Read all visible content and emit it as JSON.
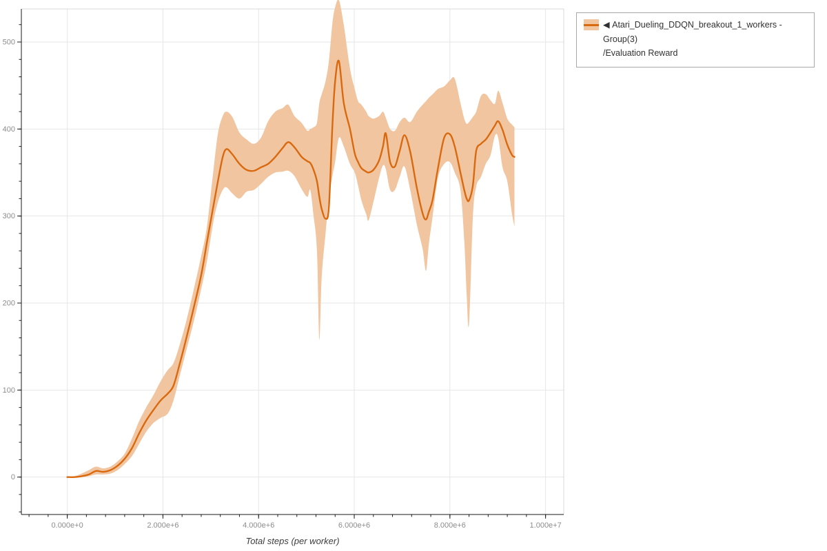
{
  "chart_data": {
    "type": "line",
    "title": "",
    "xlabel": "Total steps (per worker)",
    "ylabel": "",
    "grid": true,
    "legend_position": "top-right-outside",
    "xlim": [
      -960000,
      10380000
    ],
    "ylim": [
      -43,
      538
    ],
    "x_unit": "steps (values below given in millions of steps)",
    "x_ticks": [
      {
        "value": 0,
        "label": "0.000e+0"
      },
      {
        "value": 2000000,
        "label": "2.000e+6"
      },
      {
        "value": 4000000,
        "label": "4.000e+6"
      },
      {
        "value": 6000000,
        "label": "6.000e+6"
      },
      {
        "value": 8000000,
        "label": "8.000e+6"
      },
      {
        "value": 10000000,
        "label": "1.000e+7"
      }
    ],
    "x_minor_step": 400000,
    "y_ticks": [
      {
        "value": 0,
        "label": "0"
      },
      {
        "value": 100,
        "label": "100"
      },
      {
        "value": 200,
        "label": "200"
      },
      {
        "value": 300,
        "label": "300"
      },
      {
        "value": 400,
        "label": "400"
      },
      {
        "value": 500,
        "label": "500"
      }
    ],
    "y_minor_step": 20,
    "series": [
      {
        "name": "Atari_Dueling_DDQN_breakout_1_workers - Group(3)/Evaluation Reward",
        "color": "#d9690f",
        "band_color": "#f1c5a0",
        "x_millions": [
          0.0,
          0.15,
          0.3,
          0.45,
          0.6,
          0.75,
          0.9,
          1.05,
          1.2,
          1.35,
          1.5,
          1.65,
          1.8,
          1.95,
          2.1,
          2.22,
          2.35,
          2.5,
          2.65,
          2.8,
          2.92,
          3.05,
          3.15,
          3.25,
          3.33,
          3.45,
          3.6,
          3.75,
          3.9,
          4.05,
          4.2,
          4.35,
          4.5,
          4.62,
          4.75,
          4.9,
          5.02,
          5.08,
          5.15,
          5.22,
          5.27,
          5.32,
          5.4,
          5.47,
          5.54,
          5.6,
          5.68,
          5.78,
          5.91,
          6.01,
          6.08,
          6.15,
          6.25,
          6.3,
          6.4,
          6.52,
          6.6,
          6.66,
          6.75,
          6.85,
          6.95,
          7.05,
          7.17,
          7.31,
          7.43,
          7.5,
          7.56,
          7.64,
          7.75,
          7.88,
          8.0,
          8.1,
          8.22,
          8.3,
          8.35,
          8.4,
          8.48,
          8.55,
          8.65,
          8.75,
          8.85,
          8.94,
          9.01,
          9.1,
          9.2,
          9.3,
          9.35
        ],
        "mean": [
          0,
          0,
          1,
          3,
          7,
          6,
          8,
          13,
          21,
          33,
          50,
          65,
          77,
          88,
          96,
          105,
          130,
          162,
          196,
          232,
          270,
          310,
          340,
          368,
          377,
          371,
          360,
          353,
          352,
          356,
          360,
          368,
          378,
          385,
          379,
          368,
          363,
          361,
          353,
          340,
          322,
          308,
          297,
          310,
          400,
          455,
          478,
          430,
          400,
          372,
          362,
          355,
          351,
          350,
          353,
          364,
          380,
          395,
          362,
          357,
          375,
          393,
          374,
          332,
          303,
          296,
          305,
          319,
          355,
          390,
          394,
          380,
          350,
          330,
          320,
          318,
          335,
          375,
          383,
          388,
          396,
          404,
          409,
          399,
          382,
          370,
          368
        ],
        "upper": [
          0,
          1,
          4,
          8,
          12,
          10,
          12,
          18,
          27,
          44,
          64,
          80,
          94,
          110,
          123,
          131,
          152,
          182,
          217,
          254,
          288,
          350,
          395,
          415,
          420,
          414,
          396,
          388,
          383,
          390,
          409,
          420,
          424,
          428,
          415,
          407,
          398,
          400,
          402,
          407,
          430,
          440,
          455,
          478,
          520,
          540,
          548,
          520,
          470,
          446,
          432,
          428,
          420,
          415,
          412,
          415,
          420,
          413,
          400,
          398,
          408,
          413,
          408,
          420,
          428,
          432,
          436,
          440,
          446,
          449,
          456,
          458,
          430,
          412,
          406,
          408,
          414,
          420,
          438,
          440,
          433,
          429,
          444,
          430,
          412,
          405,
          402
        ],
        "lower": [
          0,
          0,
          0,
          1,
          3,
          3,
          4,
          8,
          15,
          24,
          38,
          52,
          62,
          68,
          73,
          88,
          116,
          148,
          180,
          216,
          248,
          292,
          316,
          330,
          333,
          326,
          320,
          328,
          330,
          337,
          345,
          350,
          351,
          352,
          346,
          331,
          322,
          330,
          300,
          260,
          158,
          230,
          280,
          320,
          345,
          362,
          390,
          380,
          360,
          350,
          335,
          318,
          302,
          295,
          316,
          344,
          358,
          354,
          330,
          330,
          345,
          357,
          330,
          290,
          262,
          237,
          268,
          300,
          344,
          360,
          362,
          350,
          330,
          272,
          210,
          176,
          298,
          334,
          345,
          360,
          370,
          392,
          390,
          356,
          340,
          302,
          288
        ]
      }
    ],
    "legend": {
      "marker": "◀",
      "line1": "Atari_Dueling_DDQN_breakout_1_workers - Group(3)",
      "line2": "/Evaluation Reward"
    }
  },
  "style_colors": {
    "line": "#d9690f",
    "band": "#f1c5a0",
    "grid": "#e6e6e6",
    "frame_border": "#d8d8d8",
    "axis": "#1a1a1a",
    "tick_label": "#8c8c8c"
  }
}
